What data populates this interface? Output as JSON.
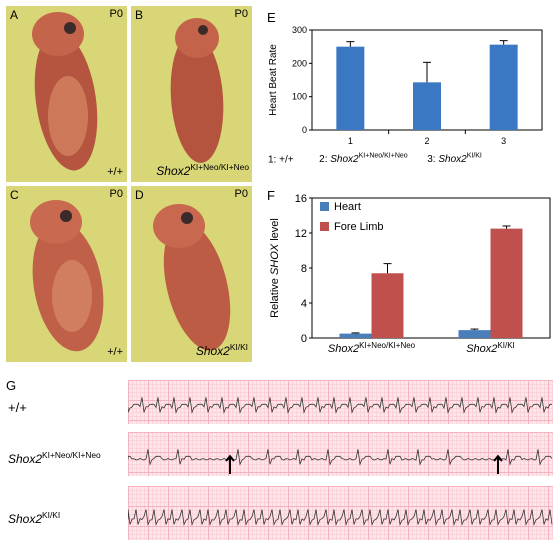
{
  "photos": [
    {
      "letter": "A",
      "stage": "P0",
      "genotype": "+/+"
    },
    {
      "letter": "B",
      "stage": "P0",
      "genotype_base": "Shox2",
      "genotype_sup": "KI+Neo/KI+Neo"
    },
    {
      "letter": "C",
      "stage": "P0",
      "genotype": "+/+"
    },
    {
      "letter": "D",
      "stage": "P0",
      "genotype_base": "Shox2",
      "genotype_sup": "KI/KI"
    }
  ],
  "panelE": {
    "letter": "E",
    "legend1": "1: +/+",
    "legend2_prefix": "2: ",
    "legend2_base": "Shox2",
    "legend2_sup": "KI+Neo/KI+Neo",
    "legend3_prefix": "3: ",
    "legend3_base": "Shox2",
    "legend3_sup": "KI/KI"
  },
  "panelF": {
    "letter": "F"
  },
  "panelG": {
    "letter": "G",
    "rows": [
      {
        "label": "+/+"
      },
      {
        "label_base": "Shox2",
        "label_sup": "KI+Neo/KI+Neo"
      },
      {
        "label_base": "Shox2",
        "label_sup": "KI/KI"
      }
    ]
  },
  "chart_data": [
    {
      "type": "bar",
      "ylabel": "Heart Beat Rate",
      "categories": [
        "1",
        "2",
        "3"
      ],
      "values": [
        250,
        143,
        256
      ],
      "errors": [
        15,
        60,
        12
      ],
      "ylim": [
        0,
        300
      ],
      "yticks": [
        0,
        100,
        200,
        300
      ],
      "color": "#3a78c4"
    },
    {
      "type": "bar",
      "ylabel": "Relative SHOX level",
      "ylabel_prefix": "Relative ",
      "ylabel_italic": "SHOX",
      "ylabel_suffix": " level",
      "categories": [
        "Shox2 KI+Neo/KI+Neo",
        "Shox2 KI/KI"
      ],
      "category_labels": [
        {
          "base": "Shox2",
          "sup": "KI+Neo/KI+Neo"
        },
        {
          "base": "Shox2",
          "sup": "KI/KI"
        }
      ],
      "series": [
        {
          "name": "Heart",
          "values": [
            0.5,
            0.9
          ],
          "errors": [
            0.08,
            0.12
          ],
          "color": "#4a7ebb"
        },
        {
          "name": "Fore Limb",
          "values": [
            7.4,
            12.5
          ],
          "errors": [
            1.1,
            0.3
          ],
          "color": "#c0504d"
        }
      ],
      "ylim": [
        0,
        16
      ],
      "yticks": [
        0,
        4,
        8,
        12,
        16
      ],
      "legend": "top-left"
    }
  ]
}
